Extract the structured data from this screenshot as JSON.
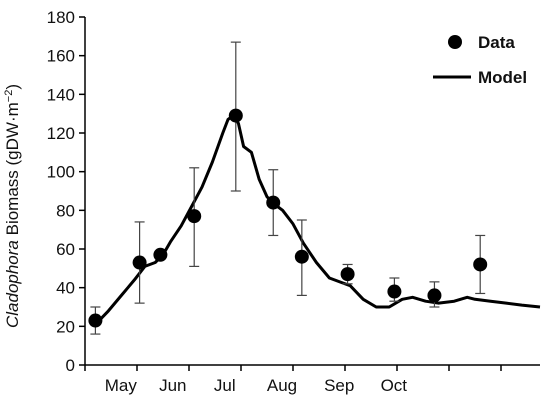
{
  "chart_data": {
    "type": "scatter",
    "title": "",
    "ylabel": {
      "italic": "Cladophora",
      "rest": " Biomass (gDW·m",
      "sup": "−2",
      "close": ")"
    },
    "xlabel": "",
    "ylim": [
      0,
      180
    ],
    "yticks": [
      0,
      20,
      40,
      60,
      80,
      100,
      120,
      140,
      160,
      180
    ],
    "month_labels": [
      "May",
      "Jun",
      "Jul",
      "Aug",
      "Sep",
      "Oct"
    ],
    "grid": false,
    "legend": {
      "position": "top-right",
      "entries": [
        "Data",
        "Model"
      ]
    },
    "colors": {
      "data": "#000000",
      "model": "#000000",
      "axis": "#000000"
    },
    "series": [
      {
        "name": "Data",
        "kind": "points-with-error-bars",
        "points": [
          {
            "month": 0.2,
            "y": 23,
            "err_low": 16,
            "err_high": 30
          },
          {
            "month": 1.05,
            "y": 53,
            "err_low": 32,
            "err_high": 74
          },
          {
            "month": 1.45,
            "y": 57,
            "err_low": 55,
            "err_high": 58
          },
          {
            "month": 2.1,
            "y": 77,
            "err_low": 51,
            "err_high": 102
          },
          {
            "month": 2.9,
            "y": 129,
            "err_low": 90,
            "err_high": 167
          },
          {
            "month": 3.62,
            "y": 84,
            "err_low": 67,
            "err_high": 101
          },
          {
            "month": 4.17,
            "y": 56,
            "err_low": 36,
            "err_high": 75
          },
          {
            "month": 5.05,
            "y": 47,
            "err_low": 42,
            "err_high": 52
          },
          {
            "month": 5.95,
            "y": 38,
            "err_low": 33,
            "err_high": 45
          },
          {
            "month": 6.72,
            "y": 36,
            "err_low": 30,
            "err_high": 43
          },
          {
            "month": 7.6,
            "y": 52,
            "err_low": 37,
            "err_high": 67
          }
        ]
      },
      {
        "name": "Model",
        "kind": "line",
        "points": [
          [
            0.2,
            21
          ],
          [
            0.45,
            28
          ],
          [
            0.7,
            36
          ],
          [
            0.95,
            44
          ],
          [
            1.15,
            51
          ],
          [
            1.35,
            53
          ],
          [
            1.5,
            57
          ],
          [
            1.65,
            64
          ],
          [
            1.85,
            72
          ],
          [
            2.05,
            82
          ],
          [
            2.25,
            92
          ],
          [
            2.45,
            105
          ],
          [
            2.65,
            120
          ],
          [
            2.75,
            127
          ],
          [
            2.85,
            129
          ],
          [
            2.95,
            125
          ],
          [
            3.05,
            113
          ],
          [
            3.2,
            110
          ],
          [
            3.35,
            96
          ],
          [
            3.5,
            87
          ],
          [
            3.65,
            83
          ],
          [
            3.8,
            80
          ],
          [
            4.0,
            73
          ],
          [
            4.2,
            63
          ],
          [
            4.45,
            53
          ],
          [
            4.7,
            45
          ],
          [
            4.9,
            43
          ],
          [
            5.1,
            41
          ],
          [
            5.35,
            34
          ],
          [
            5.6,
            30
          ],
          [
            5.85,
            30
          ],
          [
            6.1,
            34
          ],
          [
            6.3,
            35
          ],
          [
            6.55,
            33
          ],
          [
            6.8,
            32
          ],
          [
            7.1,
            33
          ],
          [
            7.35,
            35
          ],
          [
            7.5,
            34
          ],
          [
            7.8,
            33
          ],
          [
            8.1,
            32
          ],
          [
            8.4,
            31
          ],
          [
            8.75,
            30
          ]
        ]
      }
    ]
  }
}
